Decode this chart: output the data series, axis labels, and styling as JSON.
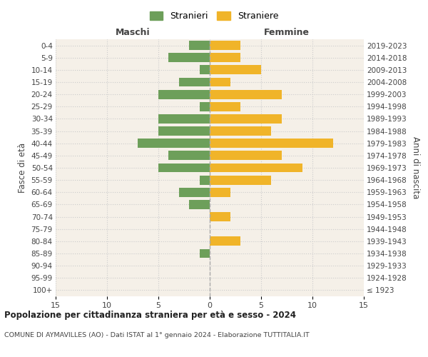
{
  "age_groups": [
    "100+",
    "95-99",
    "90-94",
    "85-89",
    "80-84",
    "75-79",
    "70-74",
    "65-69",
    "60-64",
    "55-59",
    "50-54",
    "45-49",
    "40-44",
    "35-39",
    "30-34",
    "25-29",
    "20-24",
    "15-19",
    "10-14",
    "5-9",
    "0-4"
  ],
  "birth_years": [
    "≤ 1923",
    "1924-1928",
    "1929-1933",
    "1934-1938",
    "1939-1943",
    "1944-1948",
    "1949-1953",
    "1954-1958",
    "1959-1963",
    "1964-1968",
    "1969-1973",
    "1974-1978",
    "1979-1983",
    "1984-1988",
    "1989-1993",
    "1994-1998",
    "1999-2003",
    "2004-2008",
    "2009-2013",
    "2014-2018",
    "2019-2023"
  ],
  "males": [
    0,
    0,
    0,
    1,
    0,
    0,
    0,
    2,
    3,
    1,
    5,
    4,
    7,
    5,
    5,
    1,
    5,
    3,
    1,
    4,
    2
  ],
  "females": [
    0,
    0,
    0,
    0,
    3,
    0,
    2,
    0,
    2,
    6,
    9,
    7,
    12,
    6,
    7,
    3,
    7,
    2,
    5,
    3,
    3
  ],
  "male_color": "#6d9f5a",
  "female_color": "#f0b429",
  "plot_bg_color": "#f5f0e8",
  "fig_bg_color": "#ffffff",
  "grid_color": "#cccccc",
  "center_line_color": "#aaaaaa",
  "xlim": 15,
  "title": "Popolazione per cittadinanza straniera per età e sesso - 2024",
  "subtitle": "COMUNE DI AYMAVILLES (AO) - Dati ISTAT al 1° gennaio 2024 - Elaborazione TUTTITALIA.IT",
  "xlabel_left": "Maschi",
  "xlabel_right": "Femmine",
  "ylabel_left": "Fasce di età",
  "ylabel_right": "Anni di nascita",
  "legend_male": "Stranieri",
  "legend_female": "Straniere"
}
